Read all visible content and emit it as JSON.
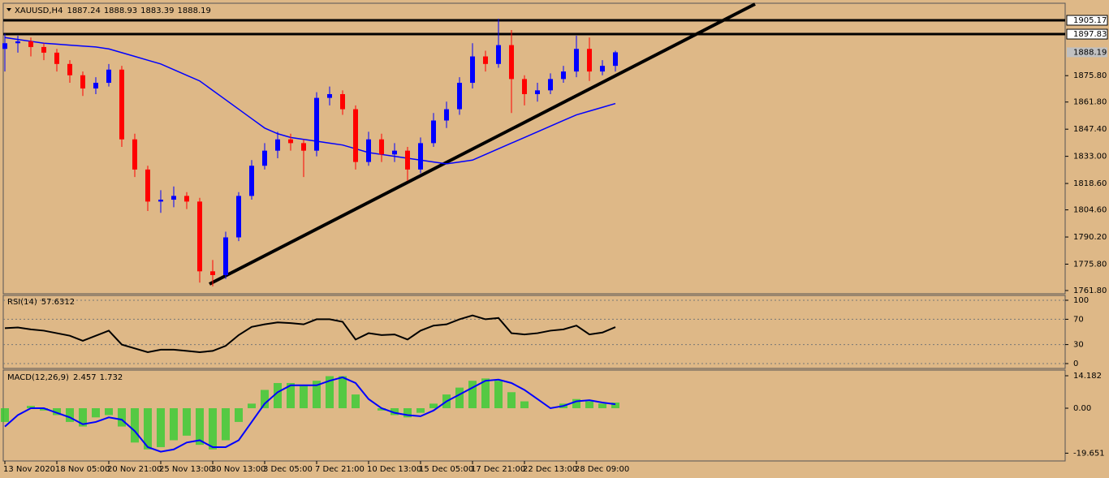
{
  "chart_data": [
    {
      "type": "candlestick",
      "title": "XAUUSD,H4",
      "header_values": [
        1887.24,
        1888.93,
        1883.39,
        1888.19
      ],
      "categories": [
        "13 Nov 2020",
        null,
        null,
        null,
        "18 Nov 05:00",
        null,
        null,
        null,
        "20 Nov 21:00",
        null,
        null,
        null,
        "25 Nov 13:00",
        null,
        null,
        null,
        "30 Nov 13:00",
        null,
        null,
        null,
        "3 Dec 05:00",
        null,
        null,
        null,
        "7 Dec 21:00",
        null,
        null,
        null,
        "10 Dec 13:00",
        null,
        null,
        null,
        "15 Dec 05:00",
        null,
        null,
        null,
        "17 Dec 21:00",
        null,
        null,
        null,
        "22 Dec 13:00",
        null,
        null,
        null,
        "28 Dec 09:00",
        null,
        null,
        null
      ],
      "open": [
        1890,
        1893,
        1894,
        1891,
        1888,
        1882,
        1876,
        1869,
        1872,
        1879,
        1842,
        1826,
        1809,
        1810,
        1812,
        1809,
        1772,
        1770,
        1790,
        1812,
        1828,
        1836,
        1842,
        1840,
        1836,
        1864,
        1866,
        1858,
        1830,
        1842,
        1834,
        1836,
        1826,
        1840,
        1852,
        1858,
        1872,
        1886,
        1882,
        1892,
        1874,
        1866,
        1868,
        1874,
        1878,
        1890,
        1878,
        1881
      ],
      "high": [
        1898,
        1897,
        1896,
        1893,
        1890,
        1884,
        1878,
        1875,
        1882,
        1881,
        1845,
        1828,
        1815,
        1817,
        1814,
        1811,
        1778,
        1793,
        1814,
        1831,
        1840,
        1846,
        1845,
        1842,
        1867,
        1870,
        1868,
        1860,
        1846,
        1845,
        1840,
        1838,
        1843,
        1856,
        1862,
        1875,
        1893,
        1889,
        1906,
        1900,
        1876,
        1872,
        1877,
        1881,
        1897,
        1896,
        1884,
        1889
      ],
      "low": [
        1878,
        1888,
        1886,
        1884,
        1878,
        1872,
        1865,
        1866,
        1870,
        1838,
        1822,
        1804,
        1803,
        1806,
        1805,
        1766,
        1764,
        1768,
        1788,
        1810,
        1826,
        1832,
        1836,
        1822,
        1833,
        1860,
        1855,
        1826,
        1828,
        1830,
        1830,
        1820,
        1824,
        1838,
        1848,
        1855,
        1869,
        1878,
        1880,
        1856,
        1860,
        1862,
        1866,
        1872,
        1875,
        1873,
        1876,
        1878
      ],
      "close": [
        1893,
        1894,
        1891,
        1888,
        1882,
        1876,
        1869,
        1872,
        1879,
        1842,
        1826,
        1809,
        1810,
        1812,
        1809,
        1772,
        1770,
        1790,
        1812,
        1828,
        1836,
        1842,
        1840,
        1836,
        1864,
        1866,
        1858,
        1830,
        1842,
        1834,
        1836,
        1826,
        1840,
        1852,
        1858,
        1872,
        1886,
        1882,
        1892,
        1874,
        1866,
        1868,
        1874,
        1878,
        1890,
        1878,
        1881,
        1888.19
      ],
      "up_color": "#0000ff",
      "down_color": "#ff0000",
      "ma": {
        "color": "#0000ff",
        "values": [
          1896,
          1895,
          1894,
          1893,
          1892.5,
          1892,
          1891.5,
          1891,
          1890,
          1888,
          1886,
          1884,
          1882,
          1879,
          1876,
          1873,
          1868,
          1863,
          1858,
          1853,
          1848,
          1845,
          1843,
          1842,
          1841,
          1840,
          1839,
          1837,
          1835,
          1834,
          1833,
          1832,
          1831,
          1830,
          1829,
          1830,
          1831,
          1834,
          1837,
          1840,
          1843,
          1846,
          1849,
          1852,
          1855,
          1857,
          1859,
          1861
        ]
      },
      "levels": [
        1905.17,
        1897.83
      ],
      "current_price": 1888.19,
      "ylim": [
        1760.08,
        1914.21
      ],
      "yticks": [
        {
          "value": 1761.8,
          "label": "1761.80"
        },
        {
          "value": 1775.8,
          "label": "1775.80"
        },
        {
          "value": 1790.2,
          "label": "1790.20"
        },
        {
          "value": 1804.6,
          "label": "1804.60"
        },
        {
          "value": 1818.6,
          "label": "1818.60"
        },
        {
          "value": 1833,
          "label": "1833.00"
        },
        {
          "value": 1847.4,
          "label": "1847.40"
        },
        {
          "value": 1861.8,
          "label": "1861.80"
        },
        {
          "value": 1875.8,
          "label": "1875.80"
        }
      ]
    },
    {
      "type": "line",
      "title": "RSI(14)",
      "title_values": [
        57.6312
      ],
      "color": "#000000",
      "values": [
        56,
        57,
        54,
        52,
        48,
        44,
        36,
        44,
        52,
        30,
        24,
        18,
        22,
        22,
        20,
        18,
        20,
        28,
        45,
        58,
        62,
        65,
        64,
        62,
        70,
        70,
        66,
        38,
        48,
        45,
        46,
        38,
        52,
        60,
        62,
        70,
        76,
        70,
        72,
        48,
        46,
        48,
        52,
        54,
        60,
        46,
        49,
        57.6312
      ],
      "ylim": [
        -7.7,
        107.7
      ],
      "yticks": [
        100,
        70,
        30,
        0
      ]
    },
    {
      "type": "macd",
      "title": "MACD(12,26,9)",
      "title_values": [
        2.457,
        1.732
      ],
      "histogram": {
        "color": "#32cd32",
        "values": [
          -6,
          0,
          1,
          -1,
          -3,
          -6,
          -8,
          -4,
          -3,
          -8,
          -15,
          -18,
          -17,
          -14,
          -12,
          -16,
          -18,
          -14,
          -6,
          2,
          8,
          11,
          11,
          10,
          12,
          14,
          14,
          6,
          0,
          -1,
          -3,
          -4,
          -2,
          2,
          6,
          9,
          12,
          13,
          12,
          7,
          3,
          0,
          0,
          2,
          4,
          3,
          2,
          2.457
        ]
      },
      "signal": {
        "color": "#0000ff",
        "values": [
          -8,
          -3,
          0,
          0,
          -2,
          -4,
          -7,
          -6,
          -4,
          -5,
          -10,
          -17,
          -19,
          -18,
          -15,
          -14,
          -17,
          -17,
          -14,
          -6,
          2,
          7,
          10,
          10,
          10,
          12,
          13.5,
          11,
          4,
          0,
          -2,
          -3,
          -3.5,
          -1,
          3,
          6,
          9,
          12,
          12.5,
          11,
          8,
          4,
          0,
          1,
          3,
          3.5,
          2.5,
          1.732
        ]
      },
      "ylim": [
        -23.05,
        16.67
      ],
      "yticks": [
        14.182,
        {
          "value": 0,
          "label": "0.00"
        },
        -19.651
      ]
    }
  ]
}
